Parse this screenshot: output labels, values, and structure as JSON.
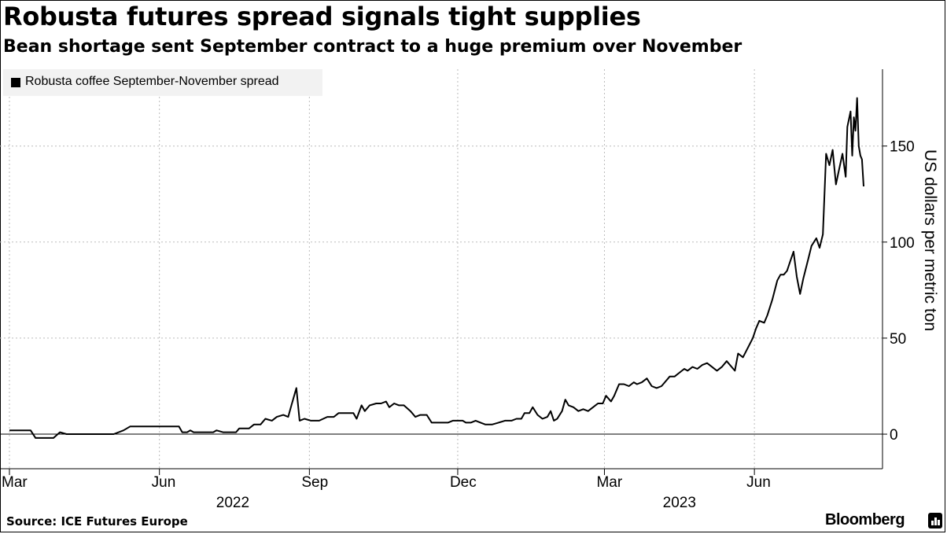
{
  "title": "Robusta futures spread signals tight supplies",
  "subtitle": "Bean shortage sent September contract to a huge premium over November",
  "source": "Source: ICE Futures Europe",
  "brand": "Bloomberg",
  "chart_data": {
    "type": "line",
    "ylabel": "US dollars per metric ton",
    "ylim": [
      -18,
      190
    ],
    "yticks": [
      0,
      50,
      100,
      150
    ],
    "y_axis_side": "right",
    "grid": true,
    "legend_position": "top-left",
    "x_start": "2022-03-01",
    "x_end": "2023-08-07",
    "x_tick_labels": [
      {
        "label": "Mar",
        "date": "2022-03-01"
      },
      {
        "label": "Jun",
        "date": "2022-06-01"
      },
      {
        "label": "Sep",
        "date": "2022-09-01"
      },
      {
        "label": "Dec",
        "date": "2022-12-01"
      },
      {
        "label": "Mar",
        "date": "2023-03-01"
      },
      {
        "label": "Jun",
        "date": "2023-06-01"
      }
    ],
    "year_labels": [
      {
        "label": "2022",
        "date": "2022-07-16"
      },
      {
        "label": "2023",
        "date": "2023-04-16"
      }
    ],
    "series": [
      {
        "name": "Robusta coffee September-November spread",
        "color": "#000000",
        "points": [
          [
            "2022-03-01",
            2
          ],
          [
            "2022-03-14",
            2
          ],
          [
            "2022-03-17",
            -2
          ],
          [
            "2022-03-28",
            -2
          ],
          [
            "2022-04-01",
            1
          ],
          [
            "2022-04-05",
            0
          ],
          [
            "2022-04-20",
            0
          ],
          [
            "2022-05-04",
            0
          ],
          [
            "2022-05-10",
            2
          ],
          [
            "2022-05-14",
            4
          ],
          [
            "2022-05-30",
            4
          ],
          [
            "2022-06-08",
            4
          ],
          [
            "2022-06-13",
            4
          ],
          [
            "2022-06-15",
            1
          ],
          [
            "2022-06-18",
            1
          ],
          [
            "2022-06-20",
            2
          ],
          [
            "2022-06-22",
            1
          ],
          [
            "2022-07-04",
            1
          ],
          [
            "2022-07-06",
            2
          ],
          [
            "2022-07-10",
            1
          ],
          [
            "2022-07-18",
            1
          ],
          [
            "2022-07-20",
            3
          ],
          [
            "2022-07-26",
            3
          ],
          [
            "2022-07-29",
            5
          ],
          [
            "2022-08-02",
            5
          ],
          [
            "2022-08-05",
            8
          ],
          [
            "2022-08-09",
            7
          ],
          [
            "2022-08-12",
            9
          ],
          [
            "2022-08-16",
            10
          ],
          [
            "2022-08-19",
            9
          ],
          [
            "2022-08-21",
            15
          ],
          [
            "2022-08-24",
            24
          ],
          [
            "2022-08-26",
            7
          ],
          [
            "2022-08-29",
            8
          ],
          [
            "2022-09-02",
            7
          ],
          [
            "2022-09-07",
            7
          ],
          [
            "2022-09-12",
            9
          ],
          [
            "2022-09-16",
            9
          ],
          [
            "2022-09-19",
            11
          ],
          [
            "2022-09-24",
            11
          ],
          [
            "2022-09-28",
            11
          ],
          [
            "2022-09-30",
            8
          ],
          [
            "2022-10-03",
            15
          ],
          [
            "2022-10-05",
            12
          ],
          [
            "2022-10-08",
            15
          ],
          [
            "2022-10-12",
            16
          ],
          [
            "2022-10-15",
            16
          ],
          [
            "2022-10-18",
            17
          ],
          [
            "2022-10-20",
            14
          ],
          [
            "2022-10-23",
            16
          ],
          [
            "2022-10-26",
            15
          ],
          [
            "2022-10-29",
            15
          ],
          [
            "2022-11-02",
            12
          ],
          [
            "2022-11-05",
            9
          ],
          [
            "2022-11-08",
            10
          ],
          [
            "2022-11-12",
            10
          ],
          [
            "2022-11-15",
            6
          ],
          [
            "2022-11-18",
            6
          ],
          [
            "2022-11-22",
            6
          ],
          [
            "2022-11-25",
            6
          ],
          [
            "2022-11-28",
            7
          ],
          [
            "2022-12-01",
            7
          ],
          [
            "2022-12-04",
            7
          ],
          [
            "2022-12-06",
            6
          ],
          [
            "2022-12-09",
            6
          ],
          [
            "2022-12-12",
            7
          ],
          [
            "2022-12-15",
            6
          ],
          [
            "2022-12-18",
            5
          ],
          [
            "2022-12-22",
            5
          ],
          [
            "2022-12-26",
            6
          ],
          [
            "2022-12-30",
            7
          ],
          [
            "2023-01-03",
            7
          ],
          [
            "2023-01-06",
            8
          ],
          [
            "2023-01-09",
            8
          ],
          [
            "2023-01-11",
            11
          ],
          [
            "2023-01-14",
            11
          ],
          [
            "2023-01-16",
            14
          ],
          [
            "2023-01-19",
            10
          ],
          [
            "2023-01-22",
            8
          ],
          [
            "2023-01-25",
            9
          ],
          [
            "2023-01-27",
            12
          ],
          [
            "2023-01-29",
            7
          ],
          [
            "2023-01-31",
            8
          ],
          [
            "2023-02-03",
            12
          ],
          [
            "2023-02-05",
            18
          ],
          [
            "2023-02-07",
            15
          ],
          [
            "2023-02-10",
            14
          ],
          [
            "2023-02-13",
            12
          ],
          [
            "2023-02-16",
            13
          ],
          [
            "2023-02-19",
            12
          ],
          [
            "2023-02-22",
            14
          ],
          [
            "2023-02-25",
            16
          ],
          [
            "2023-02-28",
            16
          ],
          [
            "2023-03-02",
            20
          ],
          [
            "2023-03-05",
            17
          ],
          [
            "2023-03-07",
            20
          ],
          [
            "2023-03-10",
            26
          ],
          [
            "2023-03-13",
            26
          ],
          [
            "2023-03-16",
            25
          ],
          [
            "2023-03-19",
            27
          ],
          [
            "2023-03-21",
            26
          ],
          [
            "2023-03-24",
            27
          ],
          [
            "2023-03-27",
            29
          ],
          [
            "2023-03-30",
            25
          ],
          [
            "2023-04-02",
            24
          ],
          [
            "2023-04-05",
            25
          ],
          [
            "2023-04-07",
            27
          ],
          [
            "2023-04-10",
            30
          ],
          [
            "2023-04-13",
            30
          ],
          [
            "2023-04-16",
            32
          ],
          [
            "2023-04-19",
            34
          ],
          [
            "2023-04-21",
            33
          ],
          [
            "2023-04-24",
            35
          ],
          [
            "2023-04-27",
            34
          ],
          [
            "2023-04-30",
            36
          ],
          [
            "2023-05-03",
            37
          ],
          [
            "2023-05-06",
            35
          ],
          [
            "2023-05-09",
            33
          ],
          [
            "2023-05-12",
            35
          ],
          [
            "2023-05-15",
            38
          ],
          [
            "2023-05-17",
            36
          ],
          [
            "2023-05-20",
            33
          ],
          [
            "2023-05-22",
            42
          ],
          [
            "2023-05-25",
            40
          ],
          [
            "2023-05-28",
            45
          ],
          [
            "2023-05-31",
            50
          ],
          [
            "2023-06-02",
            55
          ],
          [
            "2023-06-04",
            59
          ],
          [
            "2023-06-07",
            58
          ],
          [
            "2023-06-09",
            62
          ],
          [
            "2023-06-12",
            70
          ],
          [
            "2023-06-15",
            80
          ],
          [
            "2023-06-17",
            83
          ],
          [
            "2023-06-19",
            83
          ],
          [
            "2023-06-21",
            85
          ],
          [
            "2023-06-23",
            90
          ],
          [
            "2023-06-25",
            95
          ],
          [
            "2023-06-27",
            82
          ],
          [
            "2023-06-29",
            73
          ],
          [
            "2023-07-01",
            81
          ],
          [
            "2023-07-04",
            91
          ],
          [
            "2023-07-06",
            98
          ],
          [
            "2023-07-09",
            102
          ],
          [
            "2023-07-11",
            97
          ],
          [
            "2023-07-13",
            104
          ],
          [
            "2023-07-15",
            146
          ],
          [
            "2023-07-17",
            140
          ],
          [
            "2023-07-19",
            148
          ],
          [
            "2023-07-21",
            130
          ],
          [
            "2023-07-23",
            138
          ],
          [
            "2023-07-25",
            146
          ],
          [
            "2023-07-27",
            134
          ],
          [
            "2023-07-28",
            160
          ],
          [
            "2023-07-30",
            168
          ],
          [
            "2023-07-31",
            145
          ],
          [
            "2023-08-01",
            165
          ],
          [
            "2023-08-02",
            158
          ],
          [
            "2023-08-03",
            175
          ],
          [
            "2023-08-04",
            150
          ],
          [
            "2023-08-05",
            145
          ],
          [
            "2023-08-06",
            143
          ],
          [
            "2023-08-07",
            129
          ]
        ]
      }
    ]
  }
}
